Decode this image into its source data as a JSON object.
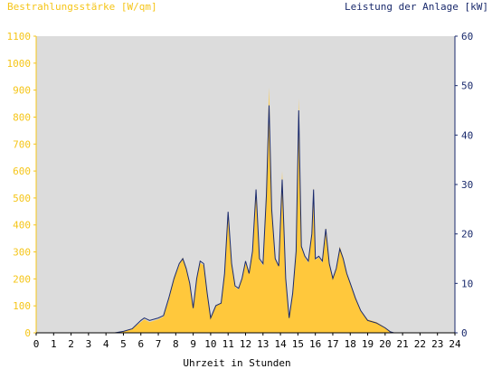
{
  "chart_data": {
    "type": "area",
    "title_left": "Bestrahlungsstärke [W/qm]",
    "title_right": "Leistung der Anlage [kW]",
    "xlabel": "Uhrzeit in Stunden",
    "xlim": [
      0,
      24
    ],
    "ylim_left": [
      0,
      1100
    ],
    "ylim_right": [
      0,
      60
    ],
    "x_ticks": [
      "0",
      "1",
      "2",
      "3",
      "4",
      "5",
      "6",
      "7",
      "8",
      "9",
      "10",
      "11",
      "12",
      "13",
      "14",
      "15",
      "16",
      "17",
      "18",
      "19",
      "20",
      "21",
      "22",
      "23",
      "24"
    ],
    "y_left_ticks": [
      "0",
      "100",
      "200",
      "300",
      "400",
      "500",
      "600",
      "700",
      "800",
      "900",
      "1000",
      "1100"
    ],
    "y_right_ticks": [
      "0",
      "10",
      "20",
      "30",
      "40",
      "50",
      "60"
    ],
    "grid": false,
    "colors": {
      "irradiance": "#ffc83c",
      "power": "#1a2a6c",
      "plot_bg": "#dcdcdc"
    },
    "series": [
      {
        "name": "Bestrahlungsstärke [W/qm]",
        "axis": "left",
        "x": [
          0,
          4.5,
          5,
          5.5,
          6,
          6.2,
          6.5,
          7,
          7.3,
          7.6,
          7.9,
          8.2,
          8.4,
          8.6,
          8.8,
          9.0,
          9.2,
          9.4,
          9.6,
          9.8,
          10.0,
          10.3,
          10.6,
          10.8,
          11.0,
          11.2,
          11.4,
          11.6,
          11.8,
          12.0,
          12.2,
          12.4,
          12.6,
          12.8,
          13.0,
          13.2,
          13.35,
          13.5,
          13.7,
          13.9,
          14.1,
          14.3,
          14.5,
          14.7,
          14.9,
          15.05,
          15.2,
          15.4,
          15.6,
          15.8,
          15.9,
          16.0,
          16.2,
          16.4,
          16.6,
          16.8,
          17.0,
          17.2,
          17.4,
          17.6,
          17.8,
          18.0,
          18.3,
          18.6,
          19.0,
          19.5,
          20.0,
          20.3,
          20.5,
          24
        ],
        "values": [
          0,
          0,
          5,
          15,
          40,
          50,
          40,
          50,
          60,
          120,
          200,
          250,
          280,
          240,
          180,
          90,
          200,
          260,
          250,
          150,
          60,
          100,
          110,
          220,
          430,
          250,
          170,
          160,
          200,
          260,
          220,
          300,
          530,
          270,
          250,
          550,
          910,
          470,
          270,
          250,
          600,
          200,
          60,
          150,
          300,
          870,
          320,
          280,
          260,
          380,
          540,
          270,
          280,
          260,
          390,
          250,
          200,
          240,
          320,
          280,
          220,
          180,
          130,
          80,
          50,
          40,
          20,
          5,
          0,
          0
        ]
      },
      {
        "name": "Leistung der Anlage [kW]",
        "axis": "right",
        "x": [
          0,
          4.5,
          5,
          5.5,
          6,
          6.2,
          6.5,
          7,
          7.3,
          7.6,
          7.9,
          8.2,
          8.4,
          8.6,
          8.8,
          9.0,
          9.2,
          9.4,
          9.6,
          9.8,
          10.0,
          10.3,
          10.6,
          10.8,
          11.0,
          11.2,
          11.4,
          11.6,
          11.8,
          12.0,
          12.2,
          12.4,
          12.6,
          12.8,
          13.0,
          13.2,
          13.35,
          13.5,
          13.7,
          13.9,
          14.1,
          14.3,
          14.5,
          14.7,
          14.9,
          15.05,
          15.2,
          15.4,
          15.6,
          15.8,
          15.9,
          16.0,
          16.2,
          16.4,
          16.6,
          16.8,
          17.0,
          17.2,
          17.4,
          17.6,
          17.8,
          18.0,
          18.3,
          18.6,
          19.0,
          19.5,
          20.0,
          20.3,
          20.5,
          24
        ],
        "values": [
          0,
          0,
          0.3,
          0.8,
          2.5,
          3,
          2.5,
          3,
          3.5,
          7,
          11,
          14,
          15,
          13,
          10,
          5,
          11,
          14.5,
          14,
          8,
          3,
          5.5,
          6,
          12,
          24.5,
          14,
          9.5,
          9,
          11,
          14.5,
          12,
          16.5,
          29,
          15,
          14,
          28,
          46,
          25,
          15,
          13.5,
          31,
          11,
          3,
          8,
          16.5,
          45,
          17.5,
          15.5,
          14.5,
          20,
          29,
          15,
          15.5,
          14.5,
          21,
          14,
          11,
          13,
          17,
          15,
          12,
          10,
          7,
          4.5,
          2.5,
          2,
          1,
          0.2,
          0,
          0
        ]
      }
    ]
  }
}
